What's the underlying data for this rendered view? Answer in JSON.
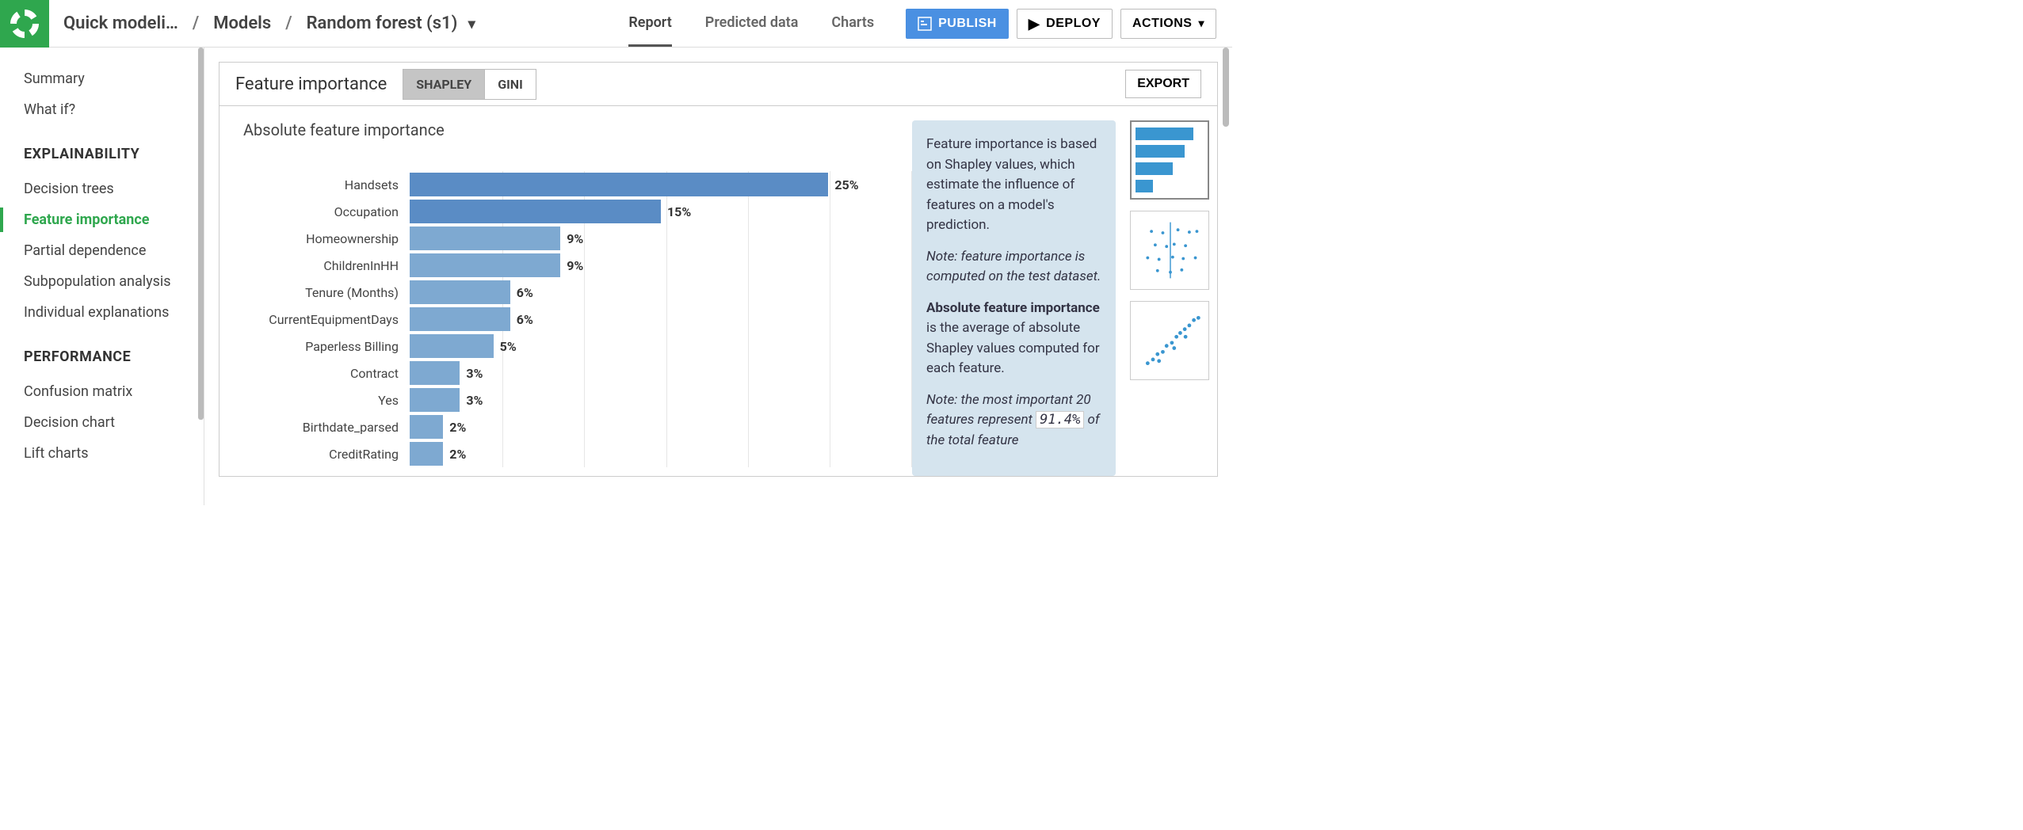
{
  "breadcrumb": {
    "project": "Quick modeli…",
    "sep": "/",
    "models": "Models",
    "model": "Random forest (s1)"
  },
  "tabs": [
    "Report",
    "Predicted data",
    "Charts"
  ],
  "active_tab": 0,
  "buttons": {
    "publish": "PUBLISH",
    "deploy": "DEPLOY",
    "actions": "ACTIONS"
  },
  "sidebar": {
    "top_items": [
      "Summary",
      "What if?"
    ],
    "sections": [
      {
        "title": "EXPLAINABILITY",
        "items": [
          "Decision trees",
          "Feature importance",
          "Partial dependence",
          "Subpopulation analysis",
          "Individual explanations"
        ],
        "active": 1
      },
      {
        "title": "PERFORMANCE",
        "items": [
          "Confusion matrix",
          "Decision chart",
          "Lift charts"
        ]
      }
    ]
  },
  "panel": {
    "title": "Feature importance",
    "toggles": [
      "SHAPLEY",
      "GINI"
    ],
    "active_toggle": 0,
    "export": "EXPORT"
  },
  "chart": {
    "title": "Absolute feature importance",
    "type": "bar-horizontal",
    "grid_divisions": 6,
    "bar_colors": [
      "#5a8cc5",
      "#5a8cc5",
      "#7ea9d1",
      "#7ea9d1",
      "#7ea9d1",
      "#7ea9d1",
      "#7ea9d1",
      "#7ea9d1",
      "#7ea9d1",
      "#7ea9d1",
      "#7ea9d1"
    ],
    "max_value": 30,
    "rows": [
      {
        "label": "Handsets",
        "value": 25,
        "display": "25%"
      },
      {
        "label": "Occupation",
        "value": 15,
        "display": "15%"
      },
      {
        "label": "Homeownership",
        "value": 9,
        "display": "9%"
      },
      {
        "label": "ChildrenInHH",
        "value": 9,
        "display": "9%"
      },
      {
        "label": "Tenure (Months)",
        "value": 6,
        "display": "6%"
      },
      {
        "label": "CurrentEquipmentDays",
        "value": 6,
        "display": "6%"
      },
      {
        "label": "Paperless Billing",
        "value": 5,
        "display": "5%"
      },
      {
        "label": "Contract",
        "value": 3,
        "display": "3%"
      },
      {
        "label": "Yes",
        "value": 3,
        "display": "3%"
      },
      {
        "label": "Birthdate_parsed",
        "value": 2,
        "display": "2%"
      },
      {
        "label": "CreditRating",
        "value": 2,
        "display": "2%"
      }
    ]
  },
  "info": {
    "p1": "Feature importance is based on Shapley values, which estimate the influence of features on a model's prediction.",
    "note1": "Note: feature importance is computed on the test dataset.",
    "strong": "Absolute feature importance",
    "p2_tail": " is the average of absolute Shapley values computed for each feature.",
    "note2_pre": "Note: the most important 20 features represent ",
    "pct": "91.4%",
    "note2_post": " of the total feature"
  },
  "thumb_colors": {
    "bar": "#3a96d0",
    "scatter": "#3a96d0"
  }
}
